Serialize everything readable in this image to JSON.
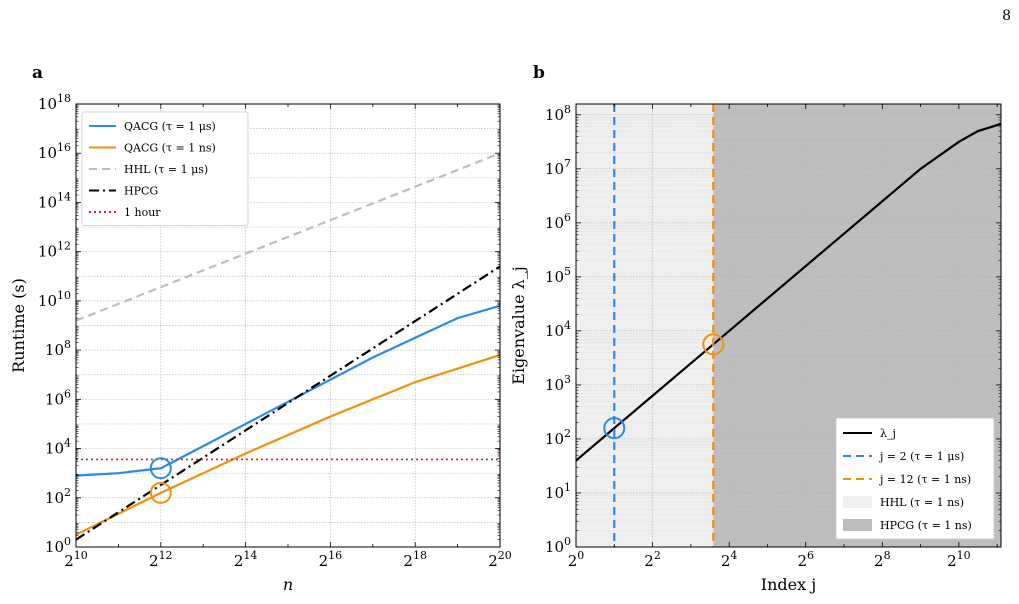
{
  "page_number": "8",
  "colors": {
    "blue": "#2a8ae6",
    "orange": "#f0900c",
    "gray_dash": "#bdbdbd",
    "black": "#000000",
    "red": "#e0202a",
    "hhl_fill": "#efefef",
    "hpcg_fill": "#bdbdbd"
  },
  "chart_data": [
    {
      "panel_label": "a",
      "type": "line",
      "xscale": "log2",
      "yscale": "log10",
      "xlim": [
        10,
        20
      ],
      "ylim": [
        0,
        18
      ],
      "xticks": [
        10,
        12,
        14,
        16,
        18,
        20
      ],
      "yticks": [
        0,
        2,
        4,
        6,
        8,
        10,
        12,
        14,
        16,
        18
      ],
      "xlabel": "n",
      "ylabel": "Runtime (s)",
      "grid": true,
      "legend_position": "top-left",
      "series": [
        {
          "name": "QACG (τ = 1 μs)",
          "color": "#2a8ae6",
          "style": "solid",
          "x": [
            10,
            11,
            12,
            13,
            14,
            15,
            16,
            17,
            18,
            19,
            20
          ],
          "y": [
            2.9,
            3.0,
            3.2,
            4.1,
            5.0,
            5.9,
            6.8,
            7.7,
            8.5,
            9.3,
            9.8
          ]
        },
        {
          "name": "QACG (τ = 1 ns)",
          "color": "#f0900c",
          "style": "solid",
          "x": [
            10,
            12,
            14,
            16,
            18,
            20
          ],
          "y": [
            0.5,
            2.2,
            3.8,
            5.3,
            6.7,
            7.8
          ]
        },
        {
          "name": "HHL (τ = 1 μs)",
          "color": "#bdbdbd",
          "style": "dashed",
          "x": [
            10,
            20
          ],
          "y": [
            9.2,
            16.0
          ]
        },
        {
          "name": "HPCG",
          "color": "#000000",
          "style": "dashdot",
          "x": [
            10,
            20
          ],
          "y": [
            0.3,
            11.4
          ]
        },
        {
          "name": "1 hour",
          "color": "#e0202a",
          "style": "dotted",
          "x": [
            10,
            20
          ],
          "y": [
            3.556,
            3.556
          ]
        }
      ],
      "markers": [
        {
          "x": 12,
          "y": 3.2,
          "color": "#2a8ae6"
        },
        {
          "x": 12,
          "y": 2.2,
          "color": "#f0900c"
        }
      ]
    },
    {
      "panel_label": "b",
      "type": "line",
      "xscale": "log2",
      "yscale": "log10",
      "xlim": [
        0,
        11.1
      ],
      "ylim": [
        0,
        8.2
      ],
      "xticks": [
        0,
        2,
        4,
        6,
        8,
        10
      ],
      "yticks": [
        0,
        1,
        2,
        3,
        4,
        5,
        6,
        7,
        8
      ],
      "xlabel": "Index j",
      "ylabel": "Eigenvalue λ_j",
      "grid": true,
      "legend_position": "bottom-right",
      "series": [
        {
          "name": "λ_j",
          "color": "#000000",
          "style": "solid",
          "x": [
            0,
            1,
            2,
            3,
            4,
            5,
            6,
            7,
            8,
            9,
            10,
            10.5,
            11.1
          ],
          "y": [
            1.6,
            2.2,
            2.8,
            3.4,
            4.0,
            4.6,
            5.2,
            5.8,
            6.4,
            7.0,
            7.5,
            7.7,
            7.83
          ]
        },
        {
          "name": "j = 2 (τ = 1 μs)",
          "color": "#2a8ae6",
          "style": "dashed",
          "vline_x": 1
        },
        {
          "name": "j = 12 (τ = 1 ns)",
          "color": "#f0900c",
          "style": "dashed",
          "vline_x": 3.585
        }
      ],
      "fills": [
        {
          "name": "HHL (τ = 1 ns)",
          "color": "#efefef",
          "x_from": 0,
          "x_to": 3.585
        },
        {
          "name": "HPCG (τ = 1 ns)",
          "color": "#bdbdbd",
          "x_from": 3.585,
          "x_to": 11.1
        }
      ],
      "markers": [
        {
          "x": 1,
          "y": 2.2,
          "color": "#2a8ae6"
        },
        {
          "x": 3.585,
          "y": 3.75,
          "color": "#f0900c"
        }
      ]
    }
  ]
}
